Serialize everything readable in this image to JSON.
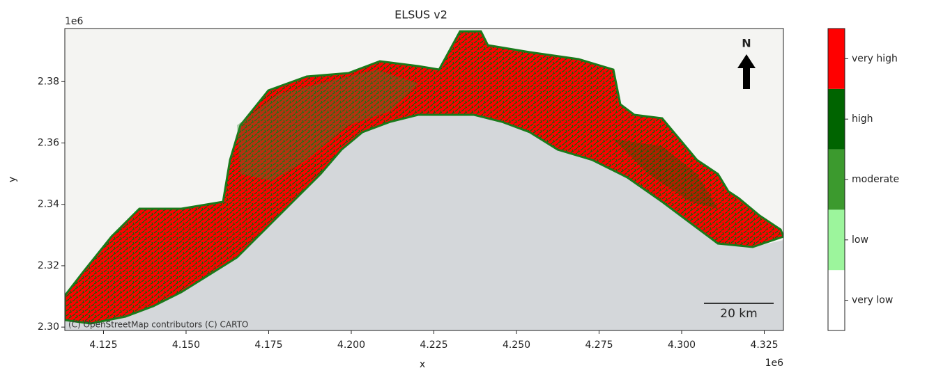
{
  "chart_data": {
    "type": "map",
    "title": "ELSUS v2",
    "x_label": "x",
    "y_label": "y",
    "x_offset": "1e6",
    "y_offset": "1e6",
    "xlim": [
      4.1133,
      4.3308
    ],
    "ylim": [
      2.2989,
      2.3973
    ],
    "xticks": [
      4.125,
      {
        "value": 4.15,
        "label": "4.150"
      },
      4.175,
      {
        "value": 4.2,
        "label": "4.200"
      },
      4.225,
      {
        "value": 4.25,
        "label": "4.250"
      },
      4.275,
      {
        "value": 4.3,
        "label": "4.300"
      },
      4.325
    ],
    "yticks": [
      {
        "value": 2.3,
        "label": "2.30"
      },
      2.32,
      2.34,
      2.36,
      2.38
    ],
    "legend": {
      "categories": [
        "very low",
        "low",
        "moderate",
        "high",
        "very high"
      ],
      "colors": [
        "#ffffff",
        "#9cf59c",
        "#3c9a2e",
        "#006400",
        "#ff0000"
      ]
    },
    "north_label": "N",
    "scale_bar_label": "20 km",
    "attribution": "(C) OpenStreetMap contributors (C) CARTO"
  }
}
